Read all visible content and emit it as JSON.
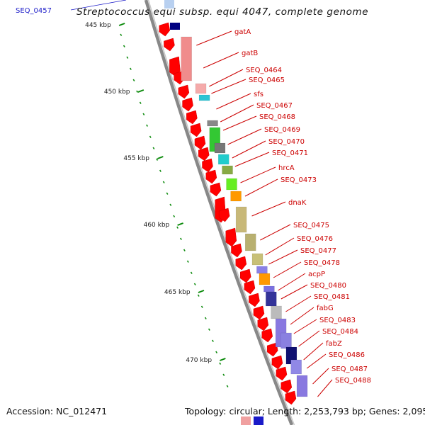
{
  "header": {
    "title": "Streptococcus equi subsp. equi 4047, complete genome",
    "top_feature_label": "SEQ_0457"
  },
  "footer": {
    "accession": "Accession: NC_012471",
    "stats": "Topology: circular; Length: 2,253,793 bp; Genes: 2,095"
  },
  "colors": {
    "gene_arrow": "#ff0000",
    "label_text": "#cc0000",
    "tick": "#0a8a0a",
    "backbone": "#888888",
    "feature_link": "#1a1ac8"
  },
  "ticks": [
    "445 kbp",
    "450 kbp",
    "455 kbp",
    "460 kbp",
    "465 kbp",
    "470 kbp"
  ],
  "gene_labels": [
    "gatA",
    "gatB",
    "SEQ_0464",
    "SEQ_0465",
    "sfs",
    "SEQ_0467",
    "SEQ_0468",
    "SEQ_0469",
    "SEQ_0470",
    "SEQ_0471",
    "hrcA",
    "SEQ_0473",
    "dnaK",
    "SEQ_0475",
    "SEQ_0476",
    "SEQ_0477",
    "SEQ_0478",
    "acpP",
    "SEQ_0480",
    "SEQ_0481",
    "fabG",
    "SEQ_0483",
    "SEQ_0484",
    "fabZ",
    "SEQ_0486",
    "SEQ_0487",
    "SEQ_0488"
  ],
  "cog_block_colors": [
    "#f08c8c",
    "#f5aaaa",
    "#2bc4d4",
    "#888888",
    "#33c833",
    "#777777",
    "#22cccc",
    "#88aa44",
    "#66ee22",
    "#ff9900",
    "#c8b878",
    "#b8b070",
    "#c8c078",
    "#8a80e6",
    "#ff9900",
    "#7a70e0",
    "#333399",
    "#bbbbbb",
    "#8878e0",
    "#8a80e0",
    "#101070",
    "#9088e6",
    "#8878e0"
  ]
}
